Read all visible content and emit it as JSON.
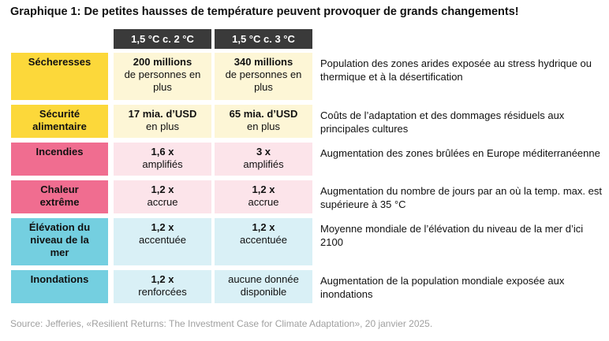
{
  "title": "Graphique 1: De petites hausses de température peuvent provoquer de grands changements!",
  "columns": [
    "1,5 °C c. 2 °C",
    "1,5 °C c. 3 °C"
  ],
  "colors": {
    "yellow": "#fcd83a",
    "yellow_light": "#fdf6d6",
    "pink": "#f06d90",
    "pink_light": "#fce4ea",
    "blue": "#74cfe0",
    "blue_light": "#d9f0f6",
    "header": "#3a3a3a"
  },
  "rows": [
    {
      "category": "Sécheresses",
      "c2_value": "200 millions",
      "c2_note": "de personnes en plus",
      "c3_value": "340 millions",
      "c3_note": "de personnes en plus",
      "description": "Population des zones arides exposée au stress hydrique ou thermique et à la désertification"
    },
    {
      "category": "Sécurité alimentaire",
      "c2_value": "17 mia. d’USD",
      "c2_note": "en plus",
      "c3_value": "65 mia. d’USD",
      "c3_note": "en plus",
      "description": "Coûts de l’adaptation et des dommages résiduels aux principales cultures"
    },
    {
      "category": "Incendies",
      "c2_value": "1,6 x",
      "c2_note": "amplifiés",
      "c3_value": "3 x",
      "c3_note": "amplifiés",
      "description": "Augmentation des zones brûlées en Europe méditerranéenne"
    },
    {
      "category": "Chaleur extrême",
      "c2_value": "1,2 x",
      "c2_note": "accrue",
      "c3_value": "1,2 x",
      "c3_note": "accrue",
      "description": "Augmentation du nombre de jours par an où la temp. max. est supérieure à 35 °C"
    },
    {
      "category": "Élévation du niveau de la mer",
      "c2_value": "1,2 x",
      "c2_note": "accentuée",
      "c3_value": "1,2 x",
      "c3_note": "accentuée",
      "description": "Moyenne mondiale de l’élévation du niveau de la mer d’ici 2100"
    },
    {
      "category": "Inondations",
      "c2_value": "1,2 x",
      "c2_note": "renforcées",
      "c3_value": "aucune donnée",
      "c3_note": "disponible",
      "description": "Augmentation de la population mondiale exposée aux inondations"
    }
  ],
  "source": "Source: Jefferies, «Resilient Returns: The Investment Case for Climate Adaptation», 20 janvier 2025."
}
